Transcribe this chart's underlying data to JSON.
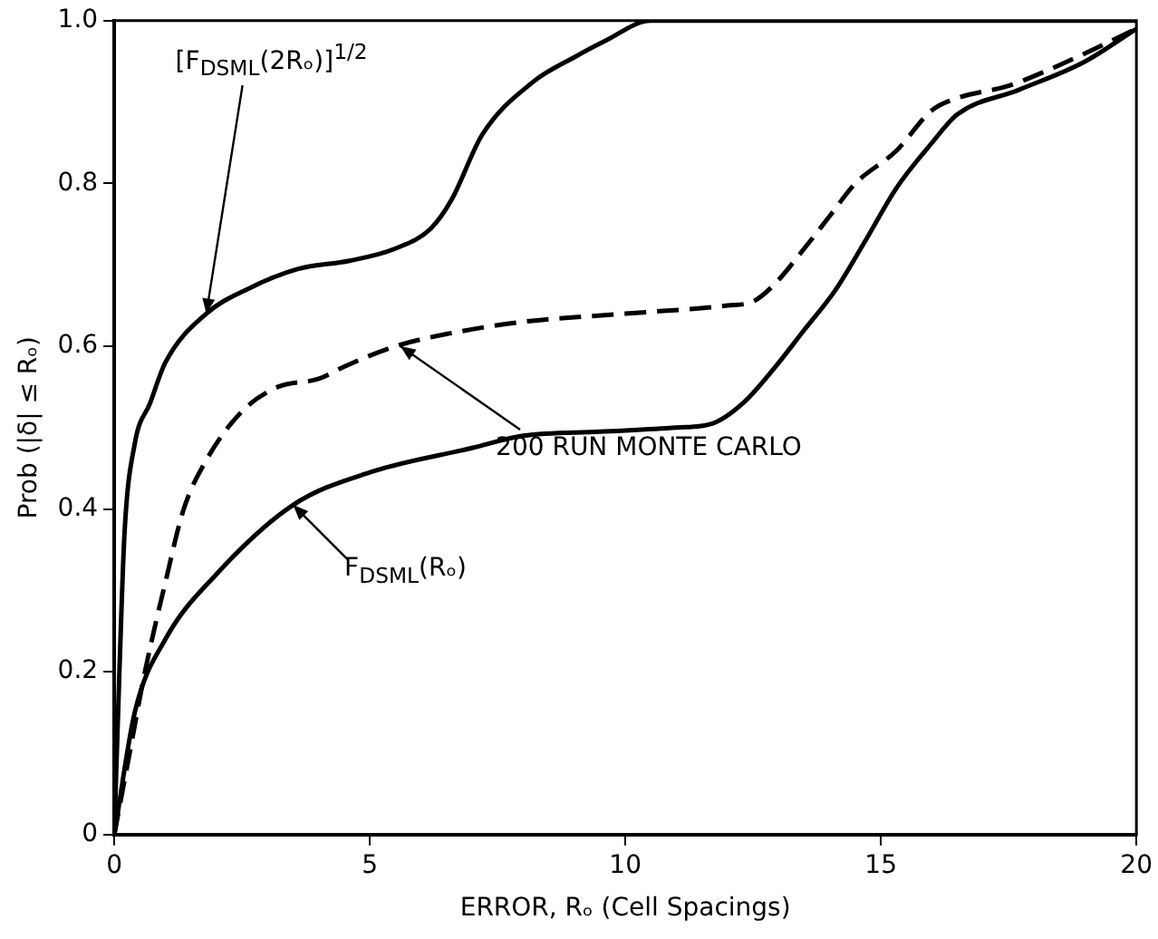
{
  "chart_data": {
    "type": "line",
    "xlabel": "ERROR, Rₒ (Cell Spacings)",
    "ylabel": "Prob (|δ| ≤ Rₒ)",
    "xlim": [
      0,
      20
    ],
    "xticks": [
      0,
      5,
      10,
      15,
      20
    ],
    "ylim": [
      0,
      1
    ],
    "yticks": [
      0,
      0.2,
      0.4,
      0.6,
      0.8,
      {
        "value": 1,
        "label": "1.0"
      }
    ],
    "grid": false,
    "legend": false,
    "marker": "none",
    "series": [
      {
        "color": "#000000",
        "line_style": "solid",
        "x": [
          0,
          0.1,
          0.2,
          0.4,
          0.7,
          1,
          1.8,
          2.6,
          3.6,
          4.6,
          5.5,
          6.2,
          6.6,
          7.2,
          8.2,
          9,
          9.6,
          10.5,
          20
        ],
        "values": [
          0,
          0.2,
          0.37,
          0.48,
          0.53,
          0.58,
          0.64,
          0.67,
          0.695,
          0.705,
          0.72,
          0.745,
          0.78,
          0.86,
          0.925,
          0.955,
          0.975,
          1,
          1
        ]
      },
      {
        "color": "#000000",
        "line_style": "dashed",
        "x": [
          0,
          0.3,
          0.6,
          1,
          1.36,
          1.8,
          2.5,
          3.2,
          4,
          4.5,
          5.5,
          6.5,
          8,
          10,
          12,
          12.5,
          12.9,
          13.5,
          14,
          14.5,
          15.3,
          16,
          16.5,
          17.5,
          18.3,
          19,
          20
        ],
        "values": [
          0,
          0.1,
          0.2,
          0.31,
          0.4,
          0.46,
          0.52,
          0.55,
          0.56,
          0.575,
          0.6,
          0.615,
          0.63,
          0.64,
          0.65,
          0.655,
          0.675,
          0.72,
          0.76,
          0.8,
          0.84,
          0.89,
          0.905,
          0.92,
          0.94,
          0.96,
          0.99
        ]
      },
      {
        "color": "#000000",
        "line_style": "solid",
        "x": [
          0,
          0.4,
          1,
          2,
          3.5,
          5,
          7,
          8,
          9.5,
          11,
          11.7,
          12.3,
          12.9,
          13.5,
          14.1,
          14.7,
          15.3,
          16,
          16.5,
          17.7,
          19,
          20
        ],
        "values": [
          0,
          0.15,
          0.24,
          0.32,
          0.405,
          0.445,
          0.475,
          0.49,
          0.495,
          0.5,
          0.505,
          0.53,
          0.572,
          0.62,
          0.668,
          0.73,
          0.794,
          0.85,
          0.885,
          0.915,
          0.95,
          0.99
        ]
      }
    ],
    "annotations": [
      {
        "text": "[F$_{DSML}$(2Rₒ)]$^{1/2}$",
        "x": 1.8,
        "y": 0.64
      },
      {
        "text": "200 RUN MONTE CARLO",
        "x": 5.6,
        "y": 0.6
      },
      {
        "text": "F$_{DSML}$(Rₒ)",
        "x": 3.5,
        "y": 0.405
      }
    ]
  }
}
